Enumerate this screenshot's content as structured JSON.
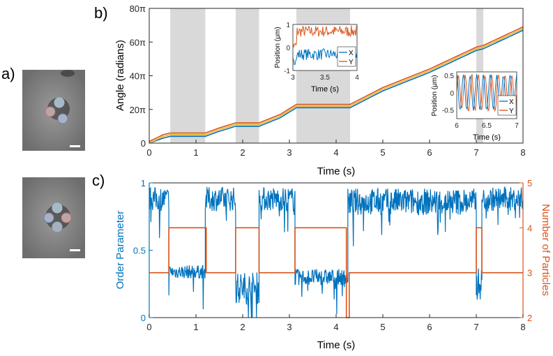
{
  "panel_labels": {
    "a": "a)",
    "b": "b)",
    "c": "c)"
  },
  "colors": {
    "blue": "#0072BD",
    "orange": "#D95319",
    "yellow": "#EDB120",
    "shade": "#D9D9D9",
    "axis": "#262626"
  },
  "chart_data": [
    {
      "type": "line",
      "panel": "b",
      "ylabel": "Angle (radians)",
      "xlabel": "Time (s)",
      "xlim": [
        0,
        8
      ],
      "ylim": [
        0,
        80
      ],
      "x_ticks": [
        "0",
        "1",
        "2",
        "3",
        "4",
        "5",
        "6",
        "7",
        "8"
      ],
      "y_ticks": [
        "0",
        "20π",
        "40π",
        "60π",
        "80π"
      ],
      "y_tick_values": [
        0,
        20,
        40,
        60,
        80
      ],
      "shaded_intervals": [
        [
          0.45,
          1.2
        ],
        [
          1.85,
          2.35
        ],
        [
          3.15,
          4.3
        ],
        [
          7.0,
          7.15
        ]
      ],
      "series": [
        {
          "color": "#0072BD",
          "x": [
            0,
            0.3,
            0.45,
            1.2,
            1.5,
            1.85,
            2.35,
            2.8,
            3.15,
            4.3,
            5.0,
            6.0,
            7.0,
            7.15,
            8.0
          ],
          "y": [
            0,
            3,
            4,
            4,
            7,
            10,
            10,
            15,
            21,
            21,
            31,
            42,
            55,
            56,
            67
          ]
        },
        {
          "color": "#EDB120",
          "x": [
            0,
            0.3,
            0.45,
            1.2,
            1.5,
            1.85,
            2.35,
            2.8,
            3.15,
            4.3,
            5.0,
            6.0,
            7.0,
            7.15,
            8.0
          ],
          "y": [
            0,
            4,
            5,
            5,
            8,
            11,
            11,
            16,
            22,
            22,
            32,
            43,
            56,
            57,
            68
          ]
        },
        {
          "color": "#D95319",
          "x": [
            0,
            0.3,
            0.45,
            1.2,
            1.5,
            1.85,
            2.35,
            2.8,
            3.15,
            4.3,
            5.0,
            6.0,
            7.0,
            7.15,
            8.0
          ],
          "y": [
            1,
            5,
            6,
            6,
            9,
            12,
            12,
            17,
            23,
            23,
            33,
            44,
            57,
            58,
            69
          ]
        }
      ],
      "insets": [
        {
          "ylabel": "Position (μm)",
          "xlabel": "Time (s)",
          "xlim": [
            3,
            4
          ],
          "ylim": [
            -1,
            1
          ],
          "x_ticks": [
            "3",
            "3.5",
            "4"
          ],
          "y_ticks": [
            "-1",
            "0",
            "1"
          ],
          "legend": [
            "X",
            "Y"
          ]
        },
        {
          "ylabel": "Position (μm)",
          "xlabel": "Time (s)",
          "xlim": [
            6,
            7
          ],
          "ylim": [
            -0.75,
            0.6
          ],
          "x_ticks": [
            "6",
            "6.5",
            "7"
          ],
          "y_ticks": [
            "-0.5",
            "0",
            "0.5"
          ],
          "legend": [
            "X",
            "Y"
          ]
        }
      ]
    },
    {
      "type": "line",
      "panel": "c",
      "xlabel": "Time (s)",
      "xlim": [
        0,
        8
      ],
      "x_ticks": [
        "0",
        "1",
        "2",
        "3",
        "4",
        "5",
        "6",
        "7",
        "8"
      ],
      "left_axis": {
        "label": "Order Parameter",
        "ylim": [
          0,
          1
        ],
        "ticks": [
          "0",
          "0.5",
          "1"
        ]
      },
      "right_axis": {
        "label": "Number of Particles",
        "ylim": [
          2,
          5
        ],
        "ticks": [
          "2",
          "3",
          "4",
          "5"
        ]
      },
      "particles_steps": {
        "x": [
          0,
          0.42,
          0.42,
          1.22,
          1.22,
          1.85,
          1.85,
          2.35,
          2.35,
          3.12,
          3.12,
          4.22,
          4.22,
          4.28,
          4.28,
          4.3,
          4.3,
          7.0,
          7.0,
          7.12,
          7.12,
          8.0
        ],
        "y": [
          3,
          3,
          4,
          4,
          3,
          3,
          4,
          4,
          3,
          3,
          4,
          4,
          2,
          2,
          3,
          3,
          3,
          3,
          4,
          4,
          3,
          3
        ]
      },
      "order_parameter_segments": [
        {
          "x0": 0.0,
          "x1": 0.42,
          "mean": 0.88,
          "spread": 0.09
        },
        {
          "x0": 0.42,
          "x1": 1.2,
          "mean": 0.34,
          "spread": 0.05
        },
        {
          "x0": 1.2,
          "x1": 1.85,
          "mean": 0.88,
          "spread": 0.09
        },
        {
          "x0": 1.85,
          "x1": 2.35,
          "mean": 0.22,
          "spread": 0.12
        },
        {
          "x0": 2.35,
          "x1": 3.12,
          "mean": 0.88,
          "spread": 0.09
        },
        {
          "x0": 3.12,
          "x1": 4.25,
          "mean": 0.3,
          "spread": 0.06
        },
        {
          "x0": 4.25,
          "x1": 7.0,
          "mean": 0.86,
          "spread": 0.1
        },
        {
          "x0": 7.0,
          "x1": 7.12,
          "mean": 0.25,
          "spread": 0.12
        },
        {
          "x0": 7.12,
          "x1": 8.0,
          "mean": 0.88,
          "spread": 0.09
        }
      ]
    }
  ]
}
